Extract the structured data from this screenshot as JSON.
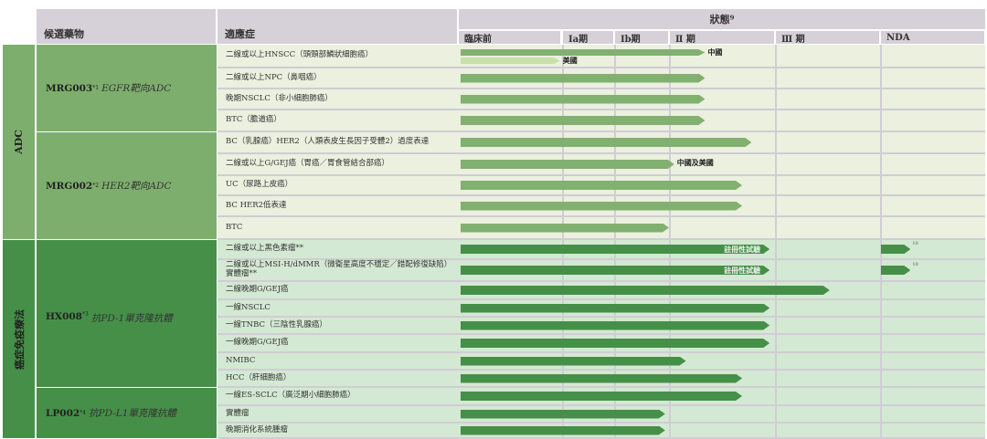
{
  "header": {
    "drug_col": "候選藥物",
    "indication_col": "適應症",
    "status_col": "狀態⁹",
    "stages": [
      "臨床前",
      "Ⅰa期",
      "Ⅰb期",
      "Ⅱ 期",
      "Ⅲ 期",
      "NDA"
    ]
  },
  "colors": {
    "header_bg": "#d6d0d8",
    "adc_cell": "#7eae6e",
    "adc_row_bg": "#ebf0df",
    "adc_bar": "#82b070",
    "us_bar": "#c8e0a8",
    "immuno_cell": "#468f48",
    "immuno_row_bg": "#d4e9d3",
    "immuno_bar": "#468f48",
    "grid": "#d0cdd4"
  },
  "categories": [
    {
      "label": "ADC",
      "rows": 9,
      "theme": "adc"
    },
    {
      "label": "癌症免疫療法",
      "rows": 11,
      "theme": "immuno"
    }
  ],
  "drugs": [
    {
      "code": "MRG003",
      "note": "*1",
      "desc": "EGFR靶向ADC",
      "rows": 4
    },
    {
      "code": "MRG002",
      "note": "*2",
      "desc": "HER2靶向ADC",
      "rows": 5
    },
    {
      "code": "HX008",
      "note": "*3",
      "desc": "抗PD-1單克隆抗體",
      "rows": 8
    },
    {
      "code": "LP002",
      "note": "*4",
      "desc": "抗PD-L1單克隆抗體",
      "rows": 3
    }
  ],
  "stage_scale_note": "bar extents in stage units: 0=臨床前 start, 1=Ⅰa, 2=Ⅰb, 3=Ⅱ, 4=Ⅲ, 5=NDA, 6=end",
  "indications": [
    {
      "text": "二線或以上HNSCC（頭頸部鱗狀細胞癌）",
      "bars": [
        {
          "end": 3.34,
          "label": "中國"
        },
        {
          "end": 0.98,
          "label": "美國",
          "variant": "us"
        }
      ]
    },
    {
      "text": "二線或以上NPC（鼻咽癌）",
      "bars": [
        {
          "end": 3.34
        }
      ]
    },
    {
      "text": "晚期NSCLC（非小細胞肺癌）",
      "bars": [
        {
          "end": 3.34
        }
      ]
    },
    {
      "text": "BTC（膽道癌）",
      "bars": [
        {
          "end": 3.34
        }
      ]
    },
    {
      "text": "BC（乳腺癌）HER2（人類表皮生長因子受體2）過度表達",
      "bars": [
        {
          "end": 3.78
        }
      ]
    },
    {
      "text": "二線或以上G/GEJ癌（胃癌／胃食管結合部癌）",
      "bars": [
        {
          "end": 3.05,
          "label": "中國及美國"
        }
      ]
    },
    {
      "text": "UC（尿路上皮癌）",
      "bars": [
        {
          "end": 3.69
        }
      ]
    },
    {
      "text": "BC HER2低表達",
      "bars": [
        {
          "end": 3.69
        }
      ]
    },
    {
      "text": "BTC",
      "bars": [
        {
          "end": 3.0
        }
      ]
    },
    {
      "text": "二線或以上黑色素瘤**",
      "bars": [
        {
          "end": 3.95,
          "inner": "註冊性試驗"
        },
        {
          "start": 5,
          "end": 5.29,
          "sup": "10"
        }
      ]
    },
    {
      "text": "二線或以上MSI-H/dMMR（微衛星高度不穩定／錯配修復缺陷）實體瘤**",
      "bars": [
        {
          "end": 3.95,
          "inner": "註冊性試驗"
        },
        {
          "start": 5,
          "end": 5.29,
          "sup": "10"
        }
      ]
    },
    {
      "text": "二線晚期G/GEJ癌",
      "bars": [
        {
          "end": 4.52
        }
      ]
    },
    {
      "text": "一線NSCLC",
      "bars": [
        {
          "end": 3.95
        }
      ]
    },
    {
      "text": "一線TNBC（三陰性乳腺癌）",
      "bars": [
        {
          "end": 3.95
        }
      ]
    },
    {
      "text": "一線晚期G/GEJ癌",
      "bars": [
        {
          "end": 3.95
        }
      ]
    },
    {
      "text": "NMIBC",
      "bars": [
        {
          "end": 3.16
        }
      ]
    },
    {
      "text": "HCC（肝細胞癌）",
      "bars": [
        {
          "end": 3.69
        }
      ]
    },
    {
      "text": "一線ES-SCLC（廣泛期小細胞肺癌）",
      "bars": [
        {
          "end": 3.69
        }
      ]
    },
    {
      "text": "實體瘤",
      "bars": [
        {
          "end": 2.93
        }
      ]
    },
    {
      "text": "晚期消化系統腫瘤",
      "bars": [
        {
          "end": 2.93
        }
      ]
    }
  ]
}
